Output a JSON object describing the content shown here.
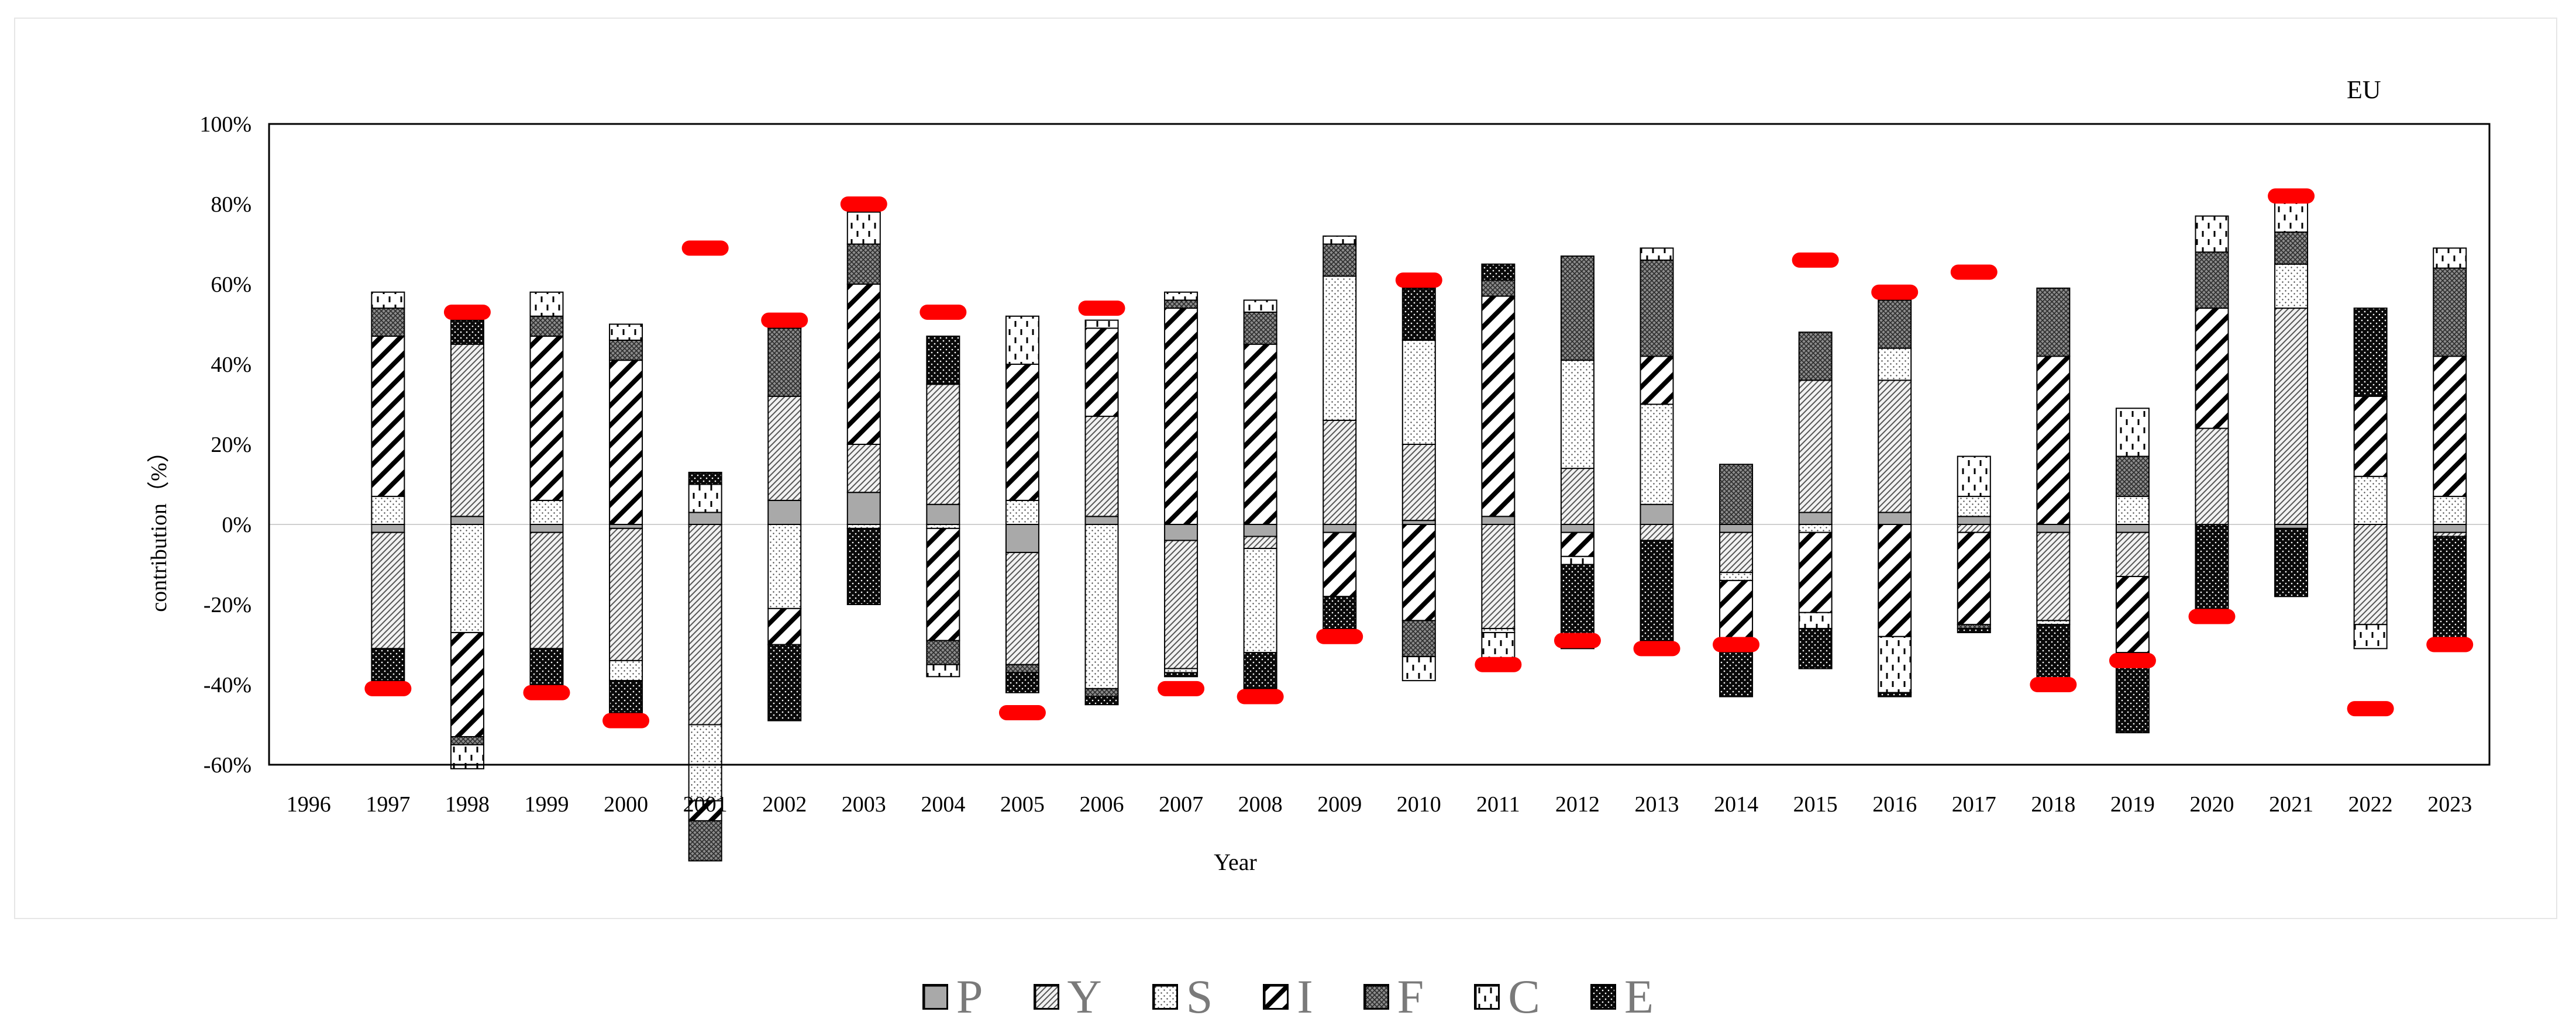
{
  "chart_data": {
    "type": "bar",
    "title": "EU",
    "xlabel": "Year",
    "ylabel": "contribution（%）",
    "ylim": [
      -60,
      100
    ],
    "yticks": [
      "-60%",
      "-40%",
      "-20%",
      "0%",
      "20%",
      "40%",
      "60%",
      "80%",
      "100%"
    ],
    "categories": [
      "1996",
      "1997",
      "1998",
      "1999",
      "2000",
      "2001",
      "2002",
      "2003",
      "2004",
      "2005",
      "2006",
      "2007",
      "2008",
      "2009",
      "2010",
      "2011",
      "2012",
      "2013",
      "2014",
      "2015",
      "2016",
      "2017",
      "2018",
      "2019",
      "2020",
      "2021",
      "2022",
      "2023"
    ],
    "series": [
      {
        "name": "P",
        "values": [
          null,
          -2,
          2,
          -2,
          -1,
          3,
          6,
          8,
          5,
          -7,
          2,
          -4,
          -3,
          -2,
          1,
          2,
          -2,
          5,
          -2,
          3,
          3,
          2,
          -2,
          -2,
          0,
          -1,
          0,
          -2
        ]
      },
      {
        "name": "Y",
        "values": [
          null,
          -29,
          43,
          -29,
          -33,
          -50,
          26,
          12,
          30,
          -28,
          25,
          -32,
          -3,
          26,
          19,
          -26,
          14,
          -4,
          -10,
          33,
          33,
          -2,
          -22,
          -11,
          24,
          54,
          -25,
          -1
        ]
      },
      {
        "name": "S",
        "values": [
          null,
          7,
          -27,
          6,
          -5,
          -19,
          -21,
          -1,
          -1,
          6,
          -41,
          -1,
          -26,
          36,
          26,
          -1,
          27,
          25,
          -2,
          -2,
          8,
          5,
          -1,
          7,
          0,
          11,
          12,
          7
        ]
      },
      {
        "name": "I",
        "values": [
          null,
          40,
          -26,
          41,
          41,
          -5,
          -9,
          40,
          -28,
          34,
          22,
          54,
          45,
          -16,
          -24,
          55,
          -6,
          12,
          -16,
          -20,
          -28,
          -23,
          42,
          -19,
          30,
          0,
          20,
          35
        ]
      },
      {
        "name": "F",
        "values": [
          null,
          7,
          -2,
          5,
          5,
          -10,
          17,
          10,
          -6,
          -2,
          -2,
          2,
          8,
          8,
          -9,
          4,
          26,
          24,
          15,
          12,
          12,
          -1,
          17,
          10,
          14,
          8,
          0,
          22
        ]
      },
      {
        "name": "C",
        "values": [
          null,
          4,
          -6,
          6,
          4,
          7,
          2,
          8,
          -3,
          12,
          2,
          2,
          3,
          2,
          -6,
          -8,
          -2,
          3,
          0,
          -4,
          -14,
          10,
          0,
          12,
          9,
          8,
          -6,
          5
        ]
      },
      {
        "name": "E",
        "values": [
          null,
          -8,
          6,
          -9,
          -8,
          3,
          -19,
          -19,
          12,
          -5,
          -2,
          -1,
          -9,
          -8,
          13,
          4,
          -21,
          -25,
          -13,
          -10,
          -1,
          -1,
          -14,
          -20,
          -22,
          -17,
          22,
          -26
        ]
      }
    ],
    "highlight_markers": {
      "1997": -41,
      "1998": 53,
      "1999": -42,
      "2000": -49,
      "2001": 69,
      "2002": 51,
      "2003": 80,
      "2004": 53,
      "2005": -47,
      "2006": 54,
      "2007": -41,
      "2008": -43,
      "2009": -28,
      "2010": 61,
      "2011": -35,
      "2012": -29,
      "2013": -31,
      "2014": -30,
      "2015": 66,
      "2016": 58,
      "2017": 63,
      "2018": -40,
      "2019": -34,
      "2020": -23,
      "2021": 82,
      "2022": -46,
      "2023": -30
    },
    "marker_color": "#ff0000",
    "grid": false,
    "legend_position": "bottom-center"
  },
  "legend": [
    {
      "label": "P",
      "pattern": "solid-gray"
    },
    {
      "label": "Y",
      "pattern": "diagonal-thin"
    },
    {
      "label": "S",
      "pattern": "dots"
    },
    {
      "label": "I",
      "pattern": "diagonal-bold"
    },
    {
      "label": "F",
      "pattern": "crosshatch"
    },
    {
      "label": "C",
      "pattern": "vertical-dashes"
    },
    {
      "label": "E",
      "pattern": "black-dots"
    }
  ]
}
